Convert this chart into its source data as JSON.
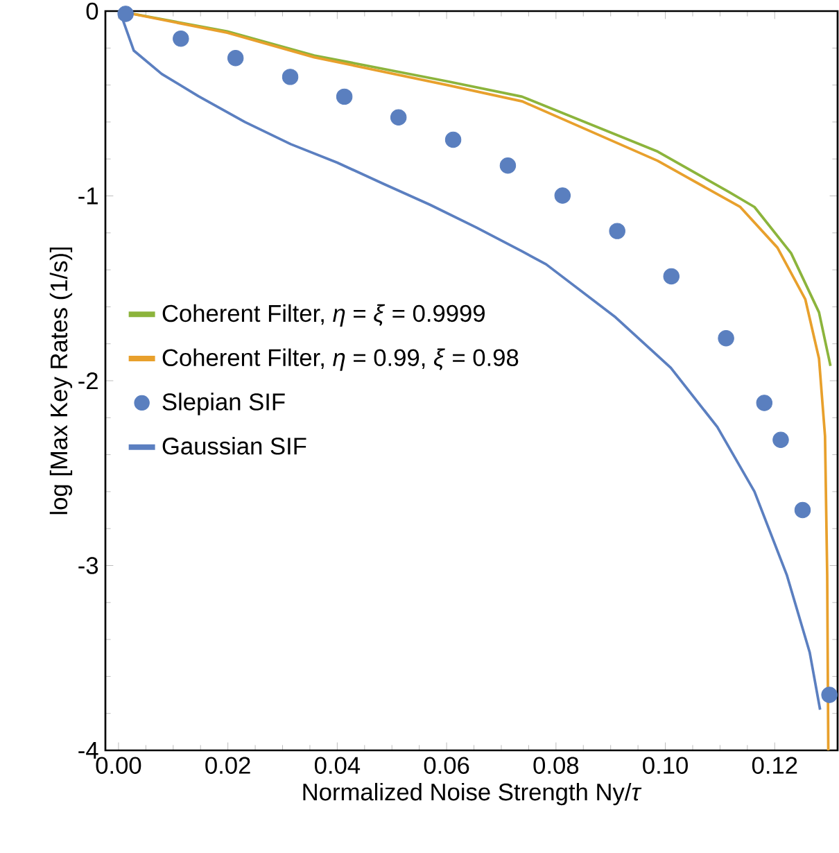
{
  "chart_data": {
    "type": "line",
    "xlabel": "Normalized Noise Strength Ny/*τ*",
    "ylabel": "log [Max Key Rates (1/s)]",
    "xlim": [
      -0.0024,
      0.1315
    ],
    "ylim": [
      -4,
      0
    ],
    "xticks": [
      {
        "value": 0,
        "label": "0.00"
      },
      {
        "value": 0.02,
        "label": "0.02"
      },
      {
        "value": 0.04,
        "label": "0.04"
      },
      {
        "value": 0.06,
        "label": "0.06"
      },
      {
        "value": 0.08,
        "label": "0.08"
      },
      {
        "value": 0.1,
        "label": "0.10"
      },
      {
        "value": 0.12,
        "label": "0.12"
      }
    ],
    "yticks": [
      -4,
      -3,
      -2,
      -1,
      0
    ],
    "grid": false,
    "legend": "left",
    "series": [
      {
        "name": "Coherent Filter, *η* = *ξ* = 0.9999",
        "color": "#8cb43c",
        "x": [
          0,
          0.0199,
          0.0358,
          0.0601,
          0.0738,
          0.0986,
          0.1117,
          0.1163,
          0.123,
          0.1281,
          0.1302
        ],
        "values": [
          0,
          -0.11,
          -0.24,
          -0.38,
          -0.463,
          -0.76,
          -0.98,
          -1.06,
          -1.31,
          -1.63,
          -1.92
        ]
      },
      {
        "name": "Coherent Filter, *η* = 0.99, *ξ* = 0.98",
        "color": "#e8a02c",
        "x": [
          0,
          0.0199,
          0.0358,
          0.0601,
          0.0738,
          0.0986,
          0.1137,
          0.1205,
          0.1256,
          0.1281,
          0.1292,
          0.1296,
          0.1298
        ],
        "values": [
          0,
          -0.117,
          -0.25,
          -0.4,
          -0.488,
          -0.81,
          -1.06,
          -1.28,
          -1.56,
          -1.88,
          -2.3,
          -3.05,
          -4
        ]
      },
      {
        "name": "Slepian SIF",
        "type": "scatter",
        "marker": "circle",
        "color": "#5a7fbf",
        "x": [
          0.0013,
          0.0114,
          0.0214,
          0.0314,
          0.0413,
          0.0512,
          0.0612,
          0.0712,
          0.0812,
          0.0912,
          0.1011,
          0.1111,
          0.1181,
          0.1211,
          0.1251,
          0.13
        ],
        "values": [
          -0.015,
          -0.149,
          -0.254,
          -0.356,
          -0.463,
          -0.575,
          -0.696,
          -0.836,
          -0.998,
          -1.19,
          -1.435,
          -1.77,
          -2.12,
          -2.32,
          -2.7,
          -3.7
        ]
      },
      {
        "name": "Gaussian SIF",
        "color": "#5b7fc0",
        "x": [
          0,
          0.0007,
          0.0028,
          0.0079,
          0.0146,
          0.0231,
          0.0315,
          0.04,
          0.0485,
          0.0569,
          0.0654,
          0.0738,
          0.0782,
          0.0909,
          0.101,
          0.1095,
          0.1163,
          0.1222,
          0.1264,
          0.1283
        ],
        "values": [
          0,
          -0.04,
          -0.214,
          -0.34,
          -0.46,
          -0.6,
          -0.72,
          -0.82,
          -0.935,
          -1.047,
          -1.17,
          -1.3,
          -1.37,
          -1.657,
          -1.93,
          -2.25,
          -2.6,
          -3.05,
          -3.47,
          -3.78
        ]
      }
    ]
  }
}
